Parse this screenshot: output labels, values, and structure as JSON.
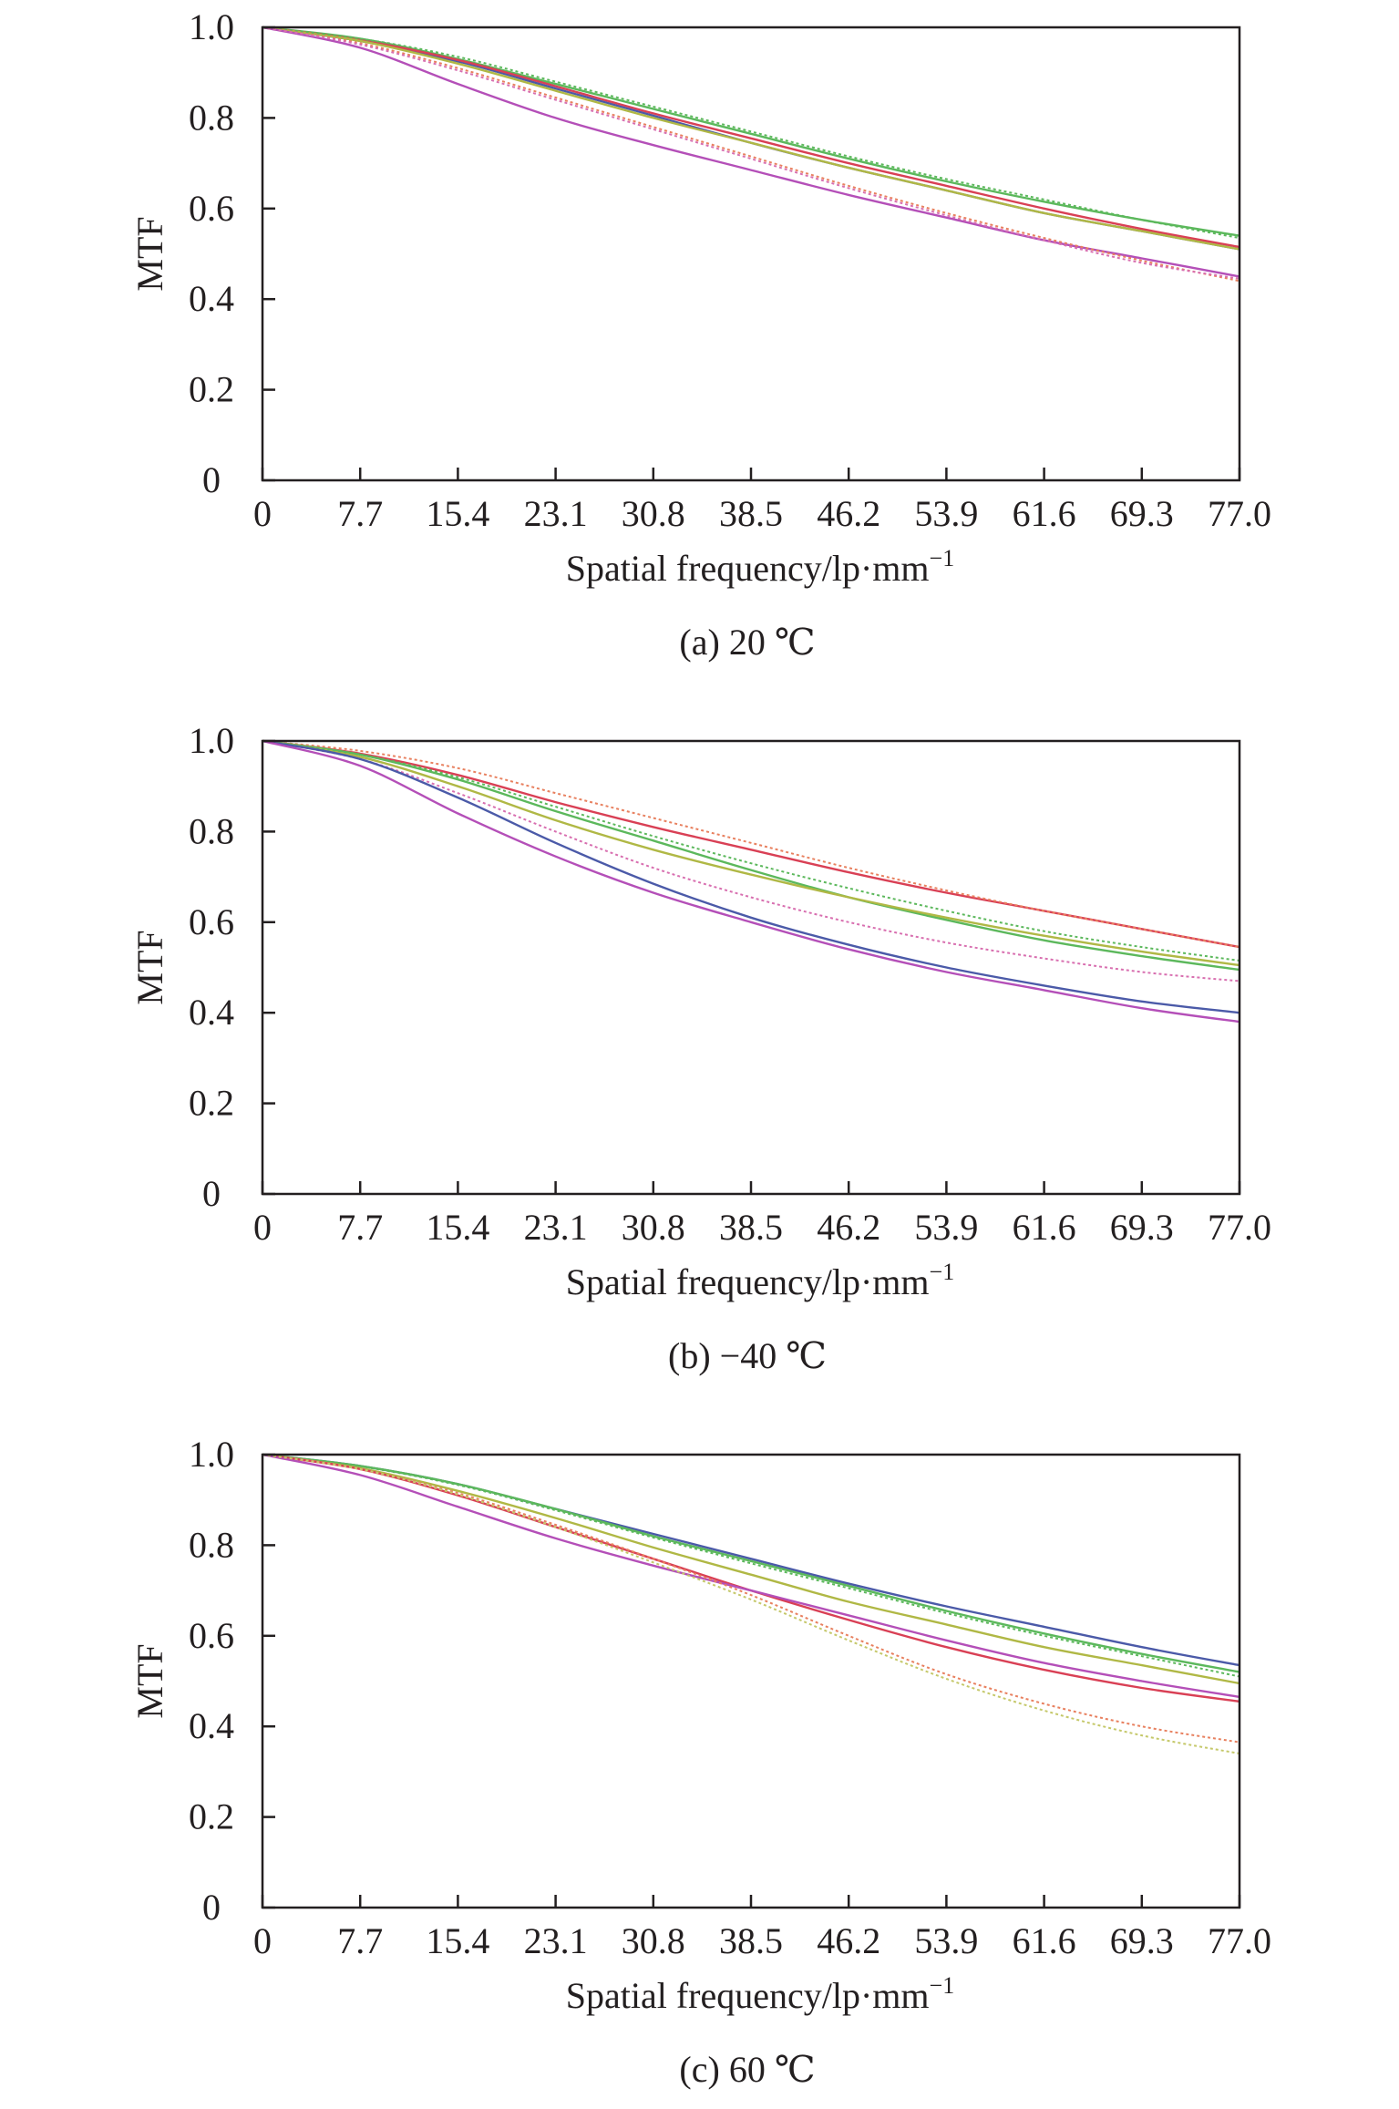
{
  "figure": {
    "panels": [
      {
        "caption": "(a) 20 ℃"
      },
      {
        "caption": "(b) −40 ℃"
      },
      {
        "caption": "(c) 60 ℃"
      }
    ]
  },
  "chart_data": [
    {
      "type": "line",
      "title": "",
      "caption": "(a) 20 ℃",
      "xlabel": "Spatial frequency/lp·mm",
      "xlabel_sup": "−1",
      "ylabel": "MTF",
      "xlim": [
        0,
        77.0
      ],
      "ylim": [
        0,
        1.0
      ],
      "x_ticks": [
        0,
        7.7,
        15.4,
        23.1,
        30.8,
        38.5,
        46.2,
        53.9,
        61.6,
        69.3,
        77.0
      ],
      "x_tick_labels": [
        "0",
        "7.7",
        "15.4",
        "23.1",
        "30.8",
        "38.5",
        "46.2",
        "53.9",
        "61.6",
        "69.3",
        "77.0"
      ],
      "y_ticks": [
        0,
        0.2,
        0.4,
        0.6,
        0.8,
        1.0
      ],
      "y_tick_labels": [
        "0",
        "0.2",
        "0.4",
        "0.6",
        "0.8",
        "1.0"
      ],
      "grid": false,
      "legend": "none",
      "series": [
        {
          "color": "#5cb85c",
          "dashed": false,
          "x": [
            0,
            7.7,
            15.4,
            23.1,
            30.8,
            38.5,
            46.2,
            53.9,
            61.6,
            69.3,
            77.0
          ],
          "values": [
            1.0,
            0.975,
            0.93,
            0.875,
            0.82,
            0.765,
            0.71,
            0.66,
            0.615,
            0.575,
            0.54
          ]
        },
        {
          "color": "#4b5aa8",
          "dashed": false,
          "x": [
            0,
            7.7,
            15.4,
            23.1,
            30.8,
            38.5,
            46.2,
            53.9,
            61.6,
            69.3,
            77.0
          ],
          "values": [
            1.0,
            0.97,
            0.925,
            0.865,
            0.805,
            0.745,
            0.69,
            0.64,
            0.59,
            0.55,
            0.51
          ]
        },
        {
          "color": "#d94055",
          "dashed": false,
          "x": [
            0,
            7.7,
            15.4,
            23.1,
            30.8,
            38.5,
            46.2,
            53.9,
            61.6,
            69.3,
            77.0
          ],
          "values": [
            1.0,
            0.972,
            0.928,
            0.87,
            0.81,
            0.755,
            0.7,
            0.65,
            0.6,
            0.555,
            0.515
          ]
        },
        {
          "color": "#b0b845",
          "dashed": false,
          "x": [
            0,
            7.7,
            15.4,
            23.1,
            30.8,
            38.5,
            46.2,
            53.9,
            61.6,
            69.3,
            77.0
          ],
          "values": [
            1.0,
            0.97,
            0.92,
            0.86,
            0.8,
            0.745,
            0.69,
            0.64,
            0.59,
            0.55,
            0.51
          ]
        },
        {
          "color": "#b44fb8",
          "dashed": false,
          "x": [
            0,
            7.7,
            15.4,
            23.1,
            30.8,
            38.5,
            46.2,
            53.9,
            61.6,
            69.3,
            77.0
          ],
          "values": [
            1.0,
            0.955,
            0.875,
            0.8,
            0.74,
            0.685,
            0.63,
            0.58,
            0.53,
            0.49,
            0.45
          ]
        },
        {
          "color": "#5cb85c",
          "dashed": true,
          "x": [
            0,
            7.7,
            15.4,
            23.1,
            30.8,
            38.5,
            46.2,
            53.9,
            61.6,
            69.3,
            77.0
          ],
          "values": [
            1.0,
            0.975,
            0.935,
            0.88,
            0.825,
            0.77,
            0.715,
            0.665,
            0.62,
            0.575,
            0.535
          ]
        },
        {
          "color": "#e8805f",
          "dashed": true,
          "x": [
            0,
            7.7,
            15.4,
            23.1,
            30.8,
            38.5,
            46.2,
            53.9,
            61.6,
            69.3,
            77.0
          ],
          "values": [
            1.0,
            0.965,
            0.91,
            0.845,
            0.78,
            0.715,
            0.65,
            0.59,
            0.535,
            0.485,
            0.44
          ]
        },
        {
          "color": "#d86fb0",
          "dashed": true,
          "x": [
            0,
            7.7,
            15.4,
            23.1,
            30.8,
            38.5,
            46.2,
            53.9,
            61.6,
            69.3,
            77.0
          ],
          "values": [
            1.0,
            0.962,
            0.905,
            0.84,
            0.775,
            0.71,
            0.645,
            0.585,
            0.53,
            0.48,
            0.445
          ]
        }
      ]
    },
    {
      "type": "line",
      "title": "",
      "caption": "(b) −40 ℃",
      "xlabel": "Spatial frequency/lp·mm",
      "xlabel_sup": "−1",
      "ylabel": "MTF",
      "xlim": [
        0,
        77.0
      ],
      "ylim": [
        0,
        1.0
      ],
      "x_ticks": [
        0,
        7.7,
        15.4,
        23.1,
        30.8,
        38.5,
        46.2,
        53.9,
        61.6,
        69.3,
        77.0
      ],
      "x_tick_labels": [
        "0",
        "7.7",
        "15.4",
        "23.1",
        "30.8",
        "38.5",
        "46.2",
        "53.9",
        "61.6",
        "69.3",
        "77.0"
      ],
      "y_ticks": [
        0,
        0.2,
        0.4,
        0.6,
        0.8,
        1.0
      ],
      "y_tick_labels": [
        "0",
        "0.2",
        "0.4",
        "0.6",
        "0.8",
        "1.0"
      ],
      "grid": false,
      "legend": "none",
      "series": [
        {
          "color": "#d94055",
          "dashed": false,
          "x": [
            0,
            7.7,
            15.4,
            23.1,
            30.8,
            38.5,
            46.2,
            53.9,
            61.6,
            69.3,
            77.0
          ],
          "values": [
            1.0,
            0.972,
            0.925,
            0.865,
            0.81,
            0.76,
            0.71,
            0.665,
            0.625,
            0.585,
            0.545
          ]
        },
        {
          "color": "#e8805f",
          "dashed": true,
          "x": [
            0,
            7.7,
            15.4,
            23.1,
            30.8,
            38.5,
            46.2,
            53.9,
            61.6,
            69.3,
            77.0
          ],
          "values": [
            1.0,
            0.978,
            0.94,
            0.885,
            0.83,
            0.775,
            0.72,
            0.67,
            0.625,
            0.585,
            0.545
          ]
        },
        {
          "color": "#5cb85c",
          "dashed": false,
          "x": [
            0,
            7.7,
            15.4,
            23.1,
            30.8,
            38.5,
            46.2,
            53.9,
            61.6,
            69.3,
            77.0
          ],
          "values": [
            1.0,
            0.97,
            0.915,
            0.845,
            0.78,
            0.715,
            0.655,
            0.605,
            0.56,
            0.525,
            0.495
          ]
        },
        {
          "color": "#b0b845",
          "dashed": false,
          "x": [
            0,
            7.7,
            15.4,
            23.1,
            30.8,
            38.5,
            46.2,
            53.9,
            61.6,
            69.3,
            77.0
          ],
          "values": [
            1.0,
            0.965,
            0.9,
            0.825,
            0.76,
            0.705,
            0.655,
            0.61,
            0.57,
            0.535,
            0.505
          ]
        },
        {
          "color": "#5cb85c",
          "dashed": true,
          "x": [
            0,
            7.7,
            15.4,
            23.1,
            30.8,
            38.5,
            46.2,
            53.9,
            61.6,
            69.3,
            77.0
          ],
          "values": [
            1.0,
            0.97,
            0.92,
            0.855,
            0.79,
            0.73,
            0.675,
            0.625,
            0.58,
            0.545,
            0.515
          ]
        },
        {
          "color": "#d86fb0",
          "dashed": true,
          "x": [
            0,
            7.7,
            15.4,
            23.1,
            30.8,
            38.5,
            46.2,
            53.9,
            61.6,
            69.3,
            77.0
          ],
          "values": [
            1.0,
            0.96,
            0.885,
            0.8,
            0.72,
            0.655,
            0.6,
            0.555,
            0.52,
            0.49,
            0.47
          ]
        },
        {
          "color": "#4b5aa8",
          "dashed": false,
          "x": [
            0,
            7.7,
            15.4,
            23.1,
            30.8,
            38.5,
            46.2,
            53.9,
            61.6,
            69.3,
            77.0
          ],
          "values": [
            1.0,
            0.96,
            0.875,
            0.775,
            0.685,
            0.61,
            0.55,
            0.5,
            0.46,
            0.425,
            0.4
          ]
        },
        {
          "color": "#b44fb8",
          "dashed": false,
          "x": [
            0,
            7.7,
            15.4,
            23.1,
            30.8,
            38.5,
            46.2,
            53.9,
            61.6,
            69.3,
            77.0
          ],
          "values": [
            1.0,
            0.945,
            0.84,
            0.745,
            0.665,
            0.6,
            0.54,
            0.49,
            0.45,
            0.41,
            0.38
          ]
        }
      ]
    },
    {
      "type": "line",
      "title": "",
      "caption": "(c) 60 ℃",
      "xlabel": "Spatial frequency/lp·mm",
      "xlabel_sup": "−1",
      "ylabel": "MTF",
      "xlim": [
        0,
        77.0
      ],
      "ylim": [
        0,
        1.0
      ],
      "x_ticks": [
        0,
        7.7,
        15.4,
        23.1,
        30.8,
        38.5,
        46.2,
        53.9,
        61.6,
        69.3,
        77.0
      ],
      "x_tick_labels": [
        "0",
        "7.7",
        "15.4",
        "23.1",
        "30.8",
        "38.5",
        "46.2",
        "53.9",
        "61.6",
        "69.3",
        "77.0"
      ],
      "y_ticks": [
        0,
        0.2,
        0.4,
        0.6,
        0.8,
        1.0
      ],
      "y_tick_labels": [
        "0",
        "0.2",
        "0.4",
        "0.6",
        "0.8",
        "1.0"
      ],
      "grid": false,
      "legend": "none",
      "series": [
        {
          "color": "#4b5aa8",
          "dashed": false,
          "x": [
            0,
            7.7,
            15.4,
            23.1,
            30.8,
            38.5,
            46.2,
            53.9,
            61.6,
            69.3,
            77.0
          ],
          "values": [
            1.0,
            0.975,
            0.935,
            0.88,
            0.825,
            0.77,
            0.715,
            0.665,
            0.62,
            0.575,
            0.535
          ]
        },
        {
          "color": "#5cb85c",
          "dashed": false,
          "x": [
            0,
            7.7,
            15.4,
            23.1,
            30.8,
            38.5,
            46.2,
            53.9,
            61.6,
            69.3,
            77.0
          ],
          "values": [
            1.0,
            0.975,
            0.935,
            0.88,
            0.82,
            0.765,
            0.71,
            0.655,
            0.605,
            0.56,
            0.52
          ]
        },
        {
          "color": "#5cb85c",
          "dashed": true,
          "x": [
            0,
            7.7,
            15.4,
            23.1,
            30.8,
            38.5,
            46.2,
            53.9,
            61.6,
            69.3,
            77.0
          ],
          "values": [
            1.0,
            0.974,
            0.933,
            0.877,
            0.817,
            0.76,
            0.705,
            0.65,
            0.6,
            0.555,
            0.51
          ]
        },
        {
          "color": "#b0b845",
          "dashed": false,
          "x": [
            0,
            7.7,
            15.4,
            23.1,
            30.8,
            38.5,
            46.2,
            53.9,
            61.6,
            69.3,
            77.0
          ],
          "values": [
            1.0,
            0.97,
            0.92,
            0.86,
            0.795,
            0.735,
            0.675,
            0.625,
            0.575,
            0.535,
            0.495
          ]
        },
        {
          "color": "#d94055",
          "dashed": false,
          "x": [
            0,
            7.7,
            15.4,
            23.1,
            30.8,
            38.5,
            46.2,
            53.9,
            61.6,
            69.3,
            77.0
          ],
          "values": [
            1.0,
            0.968,
            0.91,
            0.84,
            0.77,
            0.7,
            0.635,
            0.575,
            0.525,
            0.485,
            0.455
          ]
        },
        {
          "color": "#b44fb8",
          "dashed": false,
          "x": [
            0,
            7.7,
            15.4,
            23.1,
            30.8,
            38.5,
            46.2,
            53.9,
            61.6,
            69.3,
            77.0
          ],
          "values": [
            1.0,
            0.955,
            0.885,
            0.815,
            0.755,
            0.7,
            0.645,
            0.59,
            0.54,
            0.5,
            0.465
          ]
        },
        {
          "color": "#e8805f",
          "dashed": true,
          "x": [
            0,
            7.7,
            15.4,
            23.1,
            30.8,
            38.5,
            46.2,
            53.9,
            61.6,
            69.3,
            77.0
          ],
          "values": [
            1.0,
            0.968,
            0.915,
            0.845,
            0.77,
            0.69,
            0.6,
            0.515,
            0.45,
            0.4,
            0.365
          ]
        },
        {
          "color": "#c5c86a",
          "dashed": true,
          "x": [
            0,
            7.7,
            15.4,
            23.1,
            30.8,
            38.5,
            46.2,
            53.9,
            61.6,
            69.3,
            77.0
          ],
          "values": [
            1.0,
            0.968,
            0.912,
            0.84,
            0.762,
            0.68,
            0.59,
            0.505,
            0.435,
            0.38,
            0.34
          ]
        }
      ]
    }
  ]
}
